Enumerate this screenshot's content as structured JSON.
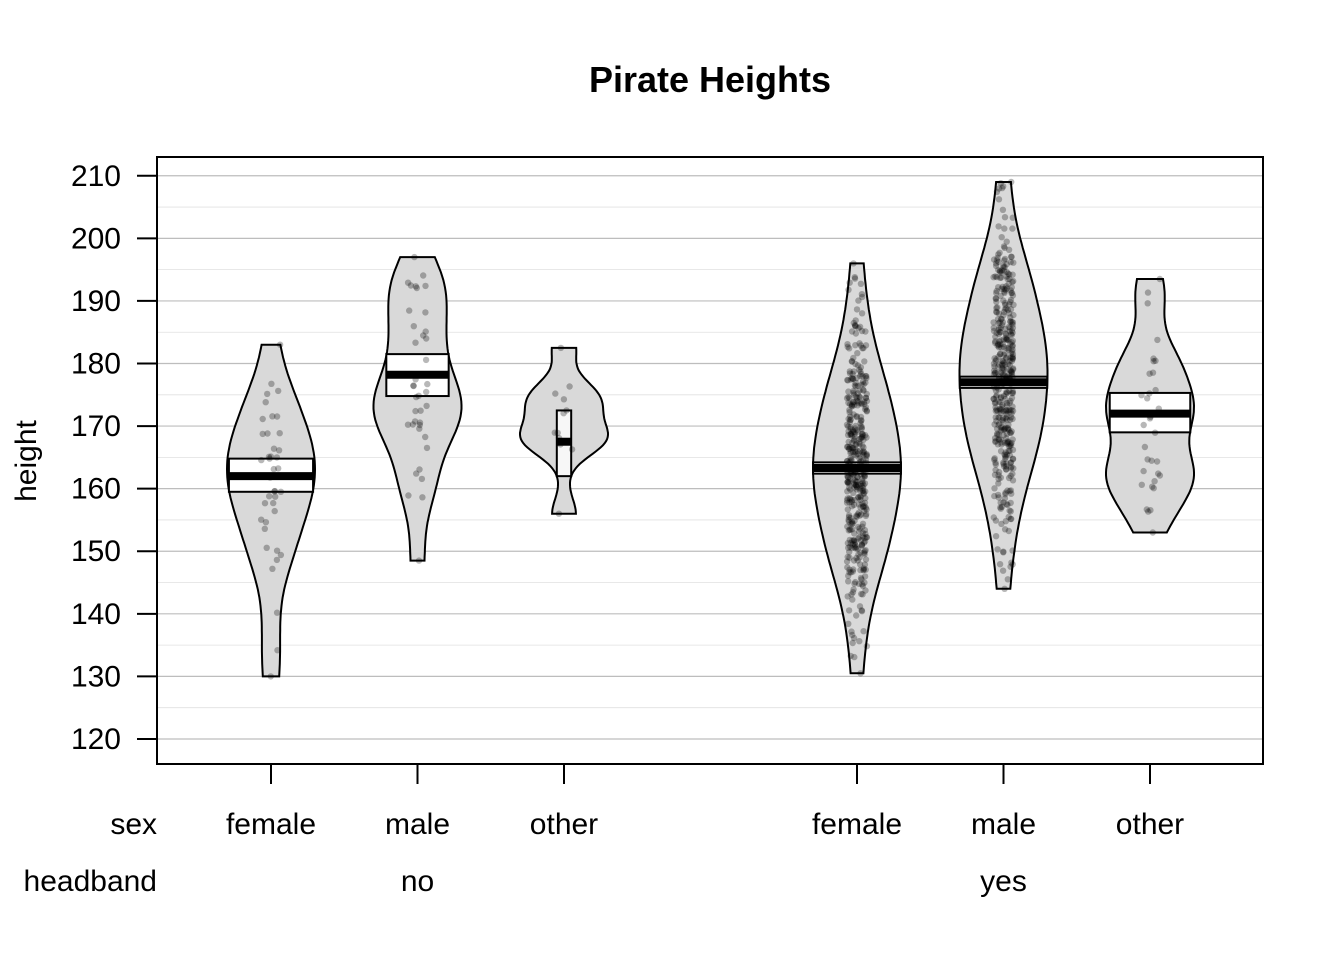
{
  "chart_data": {
    "type": "pirate",
    "title": "Pirate Heights",
    "ylabel": "height",
    "ylim": [
      116,
      213
    ],
    "yticks": [
      120,
      130,
      140,
      150,
      160,
      170,
      180,
      190,
      200,
      210
    ],
    "x_row_labels": [
      "sex",
      "headband"
    ],
    "groups": [
      {
        "label": "no",
        "categories": [
          "female",
          "male",
          "other"
        ]
      },
      {
        "label": "yes",
        "categories": [
          "female",
          "male",
          "other"
        ]
      }
    ],
    "series": [
      {
        "sex": "female",
        "headband": "no",
        "min": 130,
        "max": 183,
        "mean": 162,
        "ci": [
          159.5,
          164.8
        ],
        "n": 40,
        "inner_fill": "#ffffff"
      },
      {
        "sex": "male",
        "headband": "no",
        "min": 148.5,
        "max": 197,
        "mean": 178.2,
        "ci": [
          174.8,
          181.5
        ],
        "n": 40,
        "inner_fill": "#ffffff"
      },
      {
        "sex": "other",
        "headband": "no",
        "min": 156,
        "max": 182.5,
        "mean": 167.5,
        "ci": [
          162,
          172.5
        ],
        "n": 12,
        "inner_fill": "#f7f7f7"
      },
      {
        "sex": "female",
        "headband": "yes",
        "min": 130.5,
        "max": 196,
        "mean": 163.3,
        "ci": [
          162.4,
          164.2
        ],
        "n": 420,
        "inner_fill": "#ffffff"
      },
      {
        "sex": "male",
        "headband": "yes",
        "min": 144,
        "max": 209,
        "mean": 177,
        "ci": [
          176.1,
          177.9
        ],
        "n": 420,
        "inner_fill": "#ffffff"
      },
      {
        "sex": "other",
        "headband": "yes",
        "min": 153,
        "max": 193.5,
        "mean": 172,
        "ci": [
          169,
          175.3
        ],
        "n": 35,
        "inner_fill": "#ffffff"
      }
    ],
    "grid": true,
    "colors": {
      "bean_fill": "#d9d9d9",
      "point": "#000000",
      "grid_major": "#bdbdbd",
      "grid_minor": "#e0e0e0"
    }
  }
}
